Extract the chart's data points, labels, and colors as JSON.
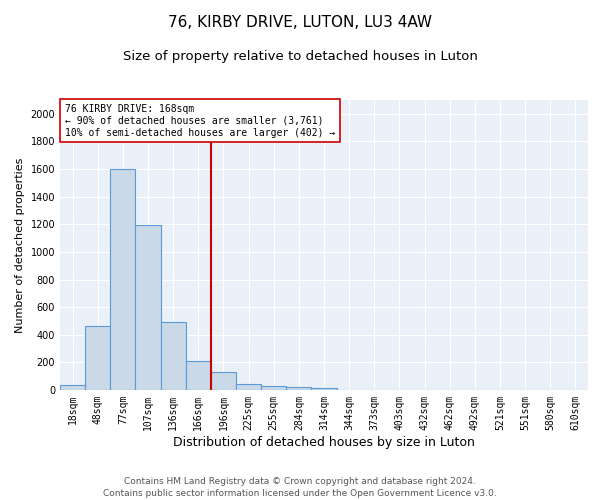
{
  "title": "76, KIRBY DRIVE, LUTON, LU3 4AW",
  "subtitle": "Size of property relative to detached houses in Luton",
  "xlabel": "Distribution of detached houses by size in Luton",
  "ylabel": "Number of detached properties",
  "footer_line1": "Contains HM Land Registry data © Crown copyright and database right 2024.",
  "footer_line2": "Contains public sector information licensed under the Open Government Licence v3.0.",
  "bin_labels": [
    "18sqm",
    "48sqm",
    "77sqm",
    "107sqm",
    "136sqm",
    "166sqm",
    "196sqm",
    "225sqm",
    "255sqm",
    "284sqm",
    "314sqm",
    "344sqm",
    "373sqm",
    "403sqm",
    "432sqm",
    "462sqm",
    "492sqm",
    "521sqm",
    "551sqm",
    "580sqm",
    "610sqm"
  ],
  "bar_values": [
    35,
    465,
    1600,
    1195,
    490,
    210,
    130,
    45,
    28,
    20,
    18,
    0,
    0,
    0,
    0,
    0,
    0,
    0,
    0,
    0,
    0
  ],
  "bar_color": "#c9d9e8",
  "bar_edge_color": "#5b9bd5",
  "vline_x": 5.5,
  "vline_color": "#cc0000",
  "annotation_text": "76 KIRBY DRIVE: 168sqm\n← 90% of detached houses are smaller (3,761)\n10% of semi-detached houses are larger (402) →",
  "annotation_box_color": "#ffffff",
  "annotation_box_edge": "#cc0000",
  "ylim": [
    0,
    2100
  ],
  "yticks": [
    0,
    200,
    400,
    600,
    800,
    1000,
    1200,
    1400,
    1600,
    1800,
    2000
  ],
  "background_color": "#eaf0f8",
  "title_fontsize": 11,
  "subtitle_fontsize": 9.5,
  "xlabel_fontsize": 9,
  "ylabel_fontsize": 8,
  "tick_fontsize": 7,
  "footer_fontsize": 6.5,
  "annotation_fontsize": 7
}
